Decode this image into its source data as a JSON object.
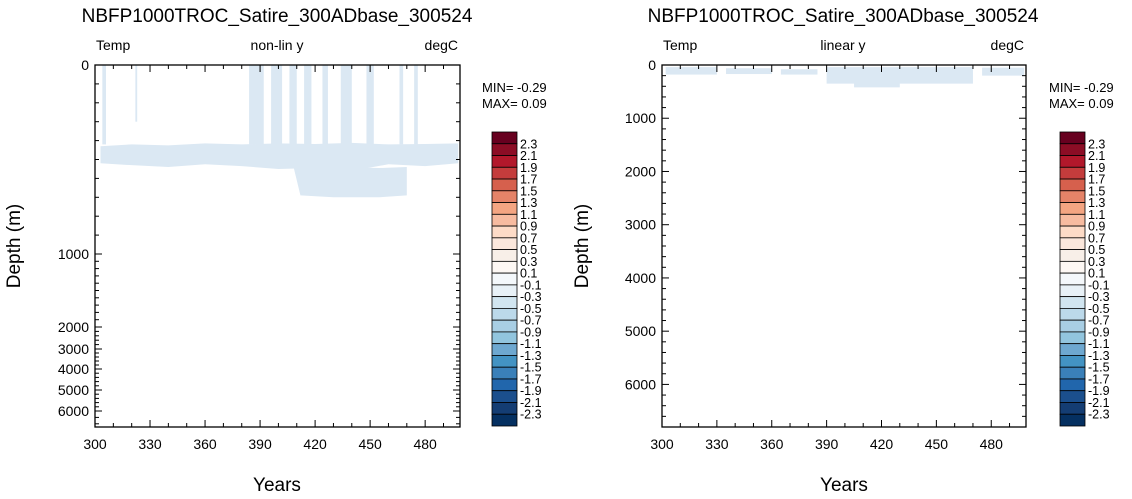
{
  "chart_data": [
    {
      "type": "heatmap",
      "title": "NBFP1000TROC_Satire_300ADbase_300524",
      "left_label": "Temp",
      "center_label": "non-lin y",
      "right_label": "degC",
      "xlabel": "Years",
      "ylabel": "Depth (m)",
      "x_ticks": [
        "300",
        "330",
        "360",
        "390",
        "420",
        "450",
        "480"
      ],
      "xlim": [
        300,
        499
      ],
      "y_scale": "non-linear",
      "y_tick_labels": [
        "0",
        "1000",
        "2000",
        "3000",
        "4000",
        "5000",
        "6000"
      ],
      "y_tick_values": [
        0,
        1000,
        2000,
        3000,
        4000,
        5000,
        6000
      ],
      "ylim": [
        0,
        6500
      ],
      "min_text": "MIN= -0.29",
      "max_text": "MAX=  0.09",
      "field_min": -0.29,
      "field_max": 0.09,
      "anomaly_color": "#dbe8f3"
    },
    {
      "type": "heatmap",
      "title": "NBFP1000TROC_Satire_300ADbase_300524",
      "left_label": "Temp",
      "center_label": "linear y",
      "right_label": "degC",
      "xlabel": "Years",
      "ylabel": "Depth (m)",
      "x_ticks": [
        "300",
        "330",
        "360",
        "390",
        "420",
        "450",
        "480"
      ],
      "xlim": [
        300,
        499
      ],
      "y_scale": "linear",
      "y_tick_labels": [
        "0",
        "1000",
        "2000",
        "3000",
        "4000",
        "5000",
        "6000"
      ],
      "y_tick_values": [
        0,
        1000,
        2000,
        3000,
        4000,
        5000,
        6000
      ],
      "ylim": [
        0,
        6800
      ],
      "min_text": "MIN= -0.29",
      "max_text": "MAX=  0.09",
      "field_min": -0.29,
      "field_max": 0.09,
      "anomaly_color": "#dbe8f3"
    }
  ],
  "colorbar": {
    "labels": [
      "2.3",
      "2.1",
      "1.9",
      "1.7",
      "1.5",
      "1.3",
      "1.1",
      "0.9",
      "0.7",
      "0.5",
      "0.3",
      "0.1",
      "-0.1",
      "-0.3",
      "-0.5",
      "-0.7",
      "-0.9",
      "-1.1",
      "-1.3",
      "-1.5",
      "-1.7",
      "-1.9",
      "-2.1",
      "-2.3"
    ],
    "colors": [
      "#67001f",
      "#8c0d25",
      "#b2182b",
      "#c43c3c",
      "#d6604d",
      "#e58368",
      "#f4a582",
      "#f7bba0",
      "#fddbc7",
      "#fbe7dc",
      "#f8efe8",
      "#fdf8f4",
      "#f4f8fb",
      "#e8f1f7",
      "#d1e5f0",
      "#bcd9ea",
      "#a8cee4",
      "#92c5de",
      "#6ea8d0",
      "#4393c3",
      "#3a80b9",
      "#2166ac",
      "#1b4f8d",
      "#143d73",
      "#053061"
    ]
  }
}
